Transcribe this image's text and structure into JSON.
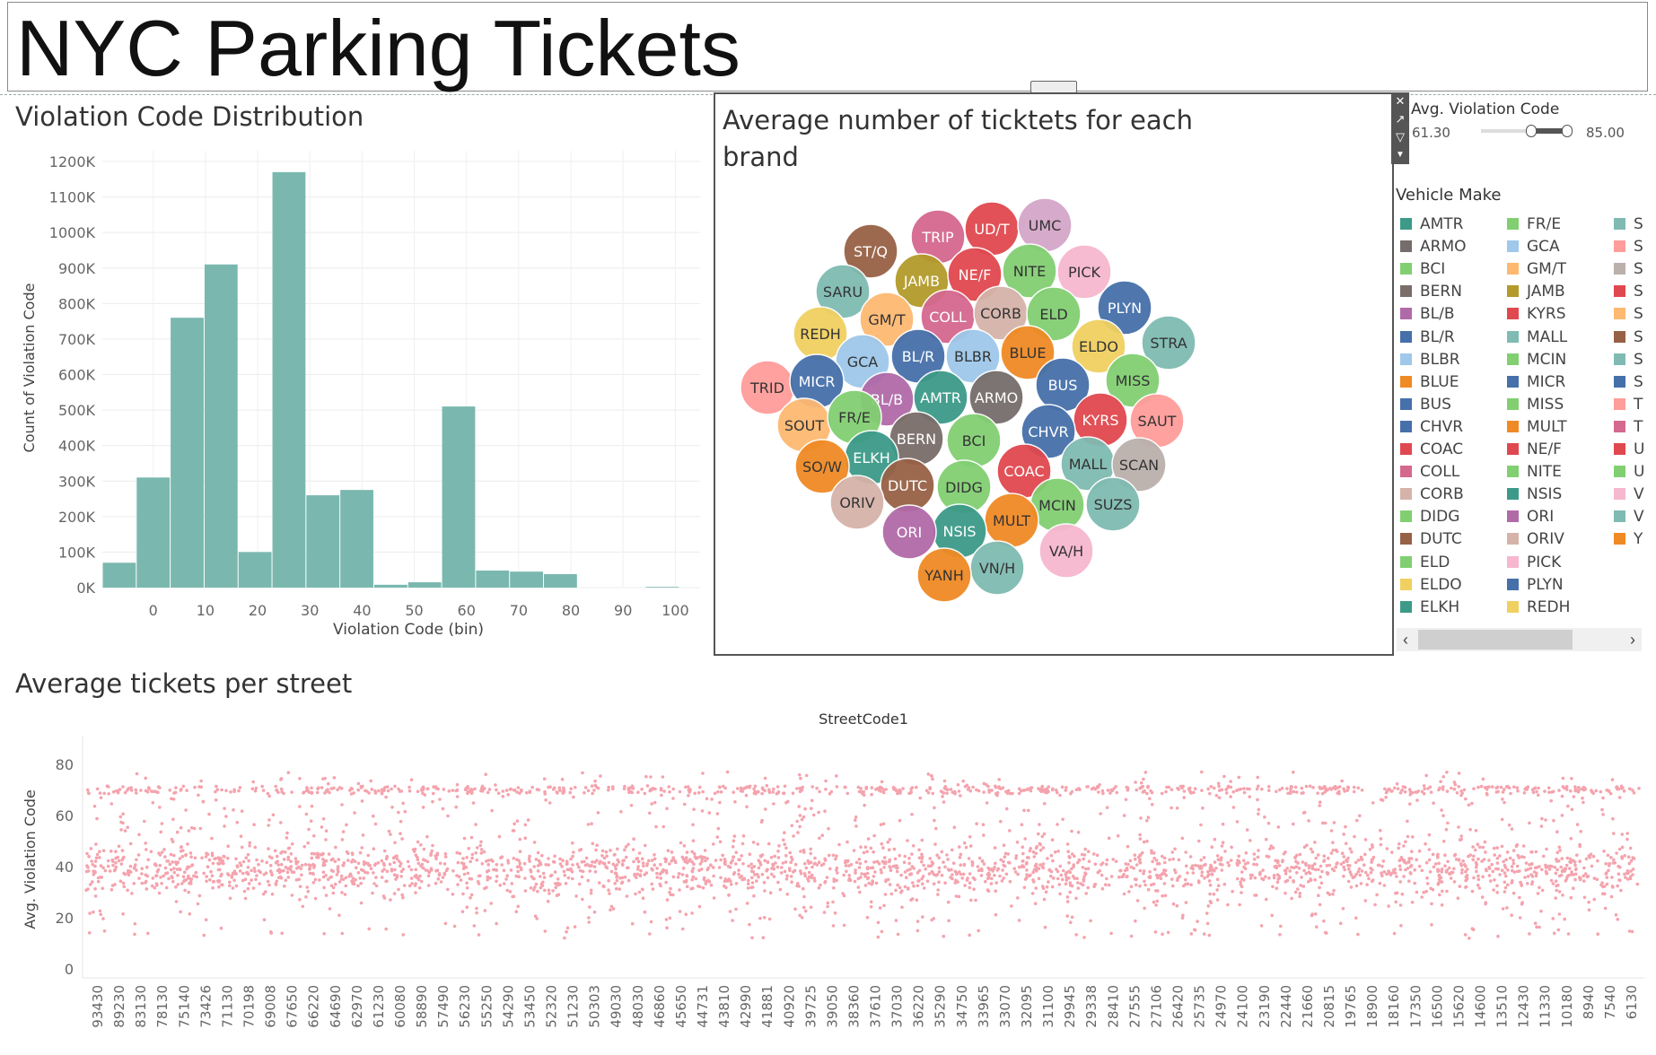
{
  "page": {
    "title": "NYC Parking Tickets",
    "histogram_title": "Violation Code Distribution",
    "bubble_title_line1": "Average number of ticktets for each",
    "bubble_title_line2": "brand",
    "scatter_title": "Average tickets per street"
  },
  "filter": {
    "label": "Avg. Violation Code",
    "min": "61.30",
    "max": "85.00"
  },
  "legend": {
    "title": "Vehicle Make",
    "col1": [
      {
        "label": "AMTR",
        "color": "#3d9a88"
      },
      {
        "label": "ARMO",
        "color": "#756d6b"
      },
      {
        "label": "BCI",
        "color": "#82cf72"
      },
      {
        "label": "BERN",
        "color": "#7a6d6a"
      },
      {
        "label": "BL/B",
        "color": "#b06aa8"
      },
      {
        "label": "BL/R",
        "color": "#4670aa"
      },
      {
        "label": "BLBR",
        "color": "#9fc8ea"
      },
      {
        "label": "BLUE",
        "color": "#f08a24"
      },
      {
        "label": "BUS",
        "color": "#4670aa"
      },
      {
        "label": "CHVR",
        "color": "#4670aa"
      },
      {
        "label": "COAC",
        "color": "#e0484f"
      },
      {
        "label": "COLL",
        "color": "#d4688e"
      },
      {
        "label": "CORB",
        "color": "#d5b3a9"
      },
      {
        "label": "DIDG",
        "color": "#82cf72"
      },
      {
        "label": "DUTC",
        "color": "#976146"
      },
      {
        "label": "ELD",
        "color": "#82cf72"
      },
      {
        "label": "ELDO",
        "color": "#f0d060"
      },
      {
        "label": "ELKH",
        "color": "#3d9a88"
      }
    ],
    "col2": [
      {
        "label": "FR/E",
        "color": "#82cf72"
      },
      {
        "label": "GCA",
        "color": "#9fc8ea"
      },
      {
        "label": "GM/T",
        "color": "#fdb971"
      },
      {
        "label": "JAMB",
        "color": "#b39a2a"
      },
      {
        "label": "KYRS",
        "color": "#e0484f"
      },
      {
        "label": "MALL",
        "color": "#7fbbb2"
      },
      {
        "label": "MCIN",
        "color": "#82cf72"
      },
      {
        "label": "MICR",
        "color": "#4670aa"
      },
      {
        "label": "MISS",
        "color": "#82cf72"
      },
      {
        "label": "MULT",
        "color": "#f08a24"
      },
      {
        "label": "NE/F",
        "color": "#e0484f"
      },
      {
        "label": "NITE",
        "color": "#82cf72"
      },
      {
        "label": "NSIS",
        "color": "#3d9a88"
      },
      {
        "label": "ORI",
        "color": "#b06aa8"
      },
      {
        "label": "ORIV",
        "color": "#d5b3a9"
      },
      {
        "label": "PICK",
        "color": "#f6b7cf"
      },
      {
        "label": "PLYN",
        "color": "#4670aa"
      },
      {
        "label": "REDH",
        "color": "#f0d060"
      }
    ],
    "col3": [
      {
        "label": "S",
        "color": "#7fbbb2"
      },
      {
        "label": "S",
        "color": "#ff9d9a"
      },
      {
        "label": "S",
        "color": "#bab0ac"
      },
      {
        "label": "S",
        "color": "#e0484f"
      },
      {
        "label": "S",
        "color": "#fdb971"
      },
      {
        "label": "S",
        "color": "#976146"
      },
      {
        "label": "S",
        "color": "#7fbbb2"
      },
      {
        "label": "S",
        "color": "#4670aa"
      },
      {
        "label": "T",
        "color": "#ff9d9a"
      },
      {
        "label": "T",
        "color": "#d4688e"
      },
      {
        "label": "U",
        "color": "#e0484f"
      },
      {
        "label": "U",
        "color": "#82cf72"
      },
      {
        "label": "V",
        "color": "#f6b7cf"
      },
      {
        "label": "V",
        "color": "#7fbbb2"
      },
      {
        "label": "Y",
        "color": "#f08a24"
      }
    ]
  },
  "chart_data": [
    {
      "type": "bar",
      "title": "Violation Code Distribution",
      "xlabel": "Violation Code (bin)",
      "ylabel": "Count of Violation Code",
      "bar_color": "#7ab8af",
      "bin_width": 6.5,
      "x_ticks": [
        "0",
        "10",
        "20",
        "30",
        "40",
        "50",
        "60",
        "70",
        "80",
        "90",
        "100"
      ],
      "y_ticks": [
        "0K",
        "100K",
        "200K",
        "300K",
        "400K",
        "500K",
        "600K",
        "700K",
        "800K",
        "900K",
        "1000K",
        "1100K",
        "1200K"
      ],
      "xlim": [
        0,
        108
      ],
      "ylim": [
        0,
        1200000
      ],
      "bin_starts": [
        -6.5,
        0,
        6.5,
        13,
        19.5,
        26,
        32.5,
        39,
        45.5,
        52,
        58.5,
        65,
        71.5,
        78,
        84.5,
        91,
        97.5
      ],
      "values": [
        70000,
        310000,
        760000,
        910000,
        100000,
        1170000,
        260000,
        275000,
        8000,
        15000,
        510000,
        48000,
        45000,
        38000,
        0,
        0,
        2000
      ],
      "grid": true
    },
    {
      "type": "bubble",
      "title": "Average number of ticktets for each brand",
      "legend": "Vehicle Make",
      "bubbles": [
        {
          "label": "TRIP",
          "color": "#d4688e"
        },
        {
          "label": "UD/T",
          "color": "#e0484f"
        },
        {
          "label": "UMC",
          "color": "#d4a6c8"
        },
        {
          "label": "ST/Q",
          "color": "#976146"
        },
        {
          "label": "JAMB",
          "color": "#b39a2a"
        },
        {
          "label": "NE/F",
          "color": "#e0484f"
        },
        {
          "label": "NITE",
          "color": "#82cf72"
        },
        {
          "label": "PICK",
          "color": "#f6b7cf"
        },
        {
          "label": "SARU",
          "color": "#7fbbb2"
        },
        {
          "label": "GM/T",
          "color": "#fdb971"
        },
        {
          "label": "COLL",
          "color": "#d4688e"
        },
        {
          "label": "CORB",
          "color": "#d5b3a9"
        },
        {
          "label": "ELD",
          "color": "#82cf72"
        },
        {
          "label": "PLYN",
          "color": "#4670aa"
        },
        {
          "label": "REDH",
          "color": "#f0d060"
        },
        {
          "label": "STRA",
          "color": "#7fbbb2"
        },
        {
          "label": "GCA",
          "color": "#9fc8ea"
        },
        {
          "label": "BL/R",
          "color": "#4670aa"
        },
        {
          "label": "BLBR",
          "color": "#9fc8ea"
        },
        {
          "label": "BLUE",
          "color": "#f08a24"
        },
        {
          "label": "ELDO",
          "color": "#f0d060"
        },
        {
          "label": "TRID",
          "color": "#ff9d9a"
        },
        {
          "label": "MICR",
          "color": "#4670aa"
        },
        {
          "label": "BL/B",
          "color": "#b06aa8"
        },
        {
          "label": "AMTR",
          "color": "#3d9a88"
        },
        {
          "label": "ARMO",
          "color": "#756d6b"
        },
        {
          "label": "BUS",
          "color": "#4670aa"
        },
        {
          "label": "MISS",
          "color": "#82cf72"
        },
        {
          "label": "SOUT",
          "color": "#fdb971"
        },
        {
          "label": "FR/E",
          "color": "#82cf72"
        },
        {
          "label": "KYRS",
          "color": "#e0484f"
        },
        {
          "label": "SAUT",
          "color": "#ff9d9a"
        },
        {
          "label": "BERN",
          "color": "#7a6d6a"
        },
        {
          "label": "BCI",
          "color": "#82cf72"
        },
        {
          "label": "CHVR",
          "color": "#4670aa"
        },
        {
          "label": "ELKH",
          "color": "#3d9a88"
        },
        {
          "label": "SO/W",
          "color": "#f08a24"
        },
        {
          "label": "COAC",
          "color": "#e0484f"
        },
        {
          "label": "MALL",
          "color": "#7fbbb2"
        },
        {
          "label": "SCAN",
          "color": "#bab0ac"
        },
        {
          "label": "DUTC",
          "color": "#976146"
        },
        {
          "label": "DIDG",
          "color": "#82cf72"
        },
        {
          "label": "ORIV",
          "color": "#d5b3a9"
        },
        {
          "label": "MCIN",
          "color": "#82cf72"
        },
        {
          "label": "SUZS",
          "color": "#7fbbb2"
        },
        {
          "label": "MULT",
          "color": "#f08a24"
        },
        {
          "label": "NSIS",
          "color": "#3d9a88"
        },
        {
          "label": "ORI",
          "color": "#b06aa8"
        },
        {
          "label": "VA/H",
          "color": "#f6b7cf"
        },
        {
          "label": "VN/H",
          "color": "#7fbbb2"
        },
        {
          "label": "YANH",
          "color": "#f08a24"
        }
      ]
    },
    {
      "type": "scatter",
      "title": "Average tickets per street",
      "xlabel": "StreetCode1",
      "ylabel": "Avg. Violation Code",
      "point_color": "#f4a3ad",
      "ylim": [
        0,
        90
      ],
      "y_ticks": [
        "0",
        "20",
        "40",
        "60",
        "80"
      ],
      "x_tick_labels": [
        "93430",
        "89230",
        "83130",
        "78130",
        "75140",
        "73426",
        "71130",
        "70198",
        "69008",
        "67650",
        "66220",
        "64690",
        "62970",
        "61230",
        "60080",
        "58890",
        "57490",
        "56230",
        "55250",
        "54290",
        "53450",
        "52320",
        "51230",
        "50303",
        "49030",
        "48030",
        "46860",
        "45650",
        "44731",
        "43810",
        "42990",
        "41881",
        "40920",
        "39725",
        "39050",
        "38360",
        "37610",
        "37030",
        "36220",
        "35290",
        "34750",
        "33965",
        "33070",
        "32095",
        "31100",
        "29945",
        "29338",
        "28410",
        "27555",
        "27106",
        "26420",
        "25735",
        "24970",
        "24100",
        "23190",
        "22440",
        "21660",
        "20815",
        "19765",
        "18900",
        "18160",
        "17350",
        "16500",
        "15620",
        "14600",
        "13510",
        "12430",
        "11330",
        "10180",
        "8940",
        "7540",
        "6130"
      ],
      "note": ""
    }
  ]
}
